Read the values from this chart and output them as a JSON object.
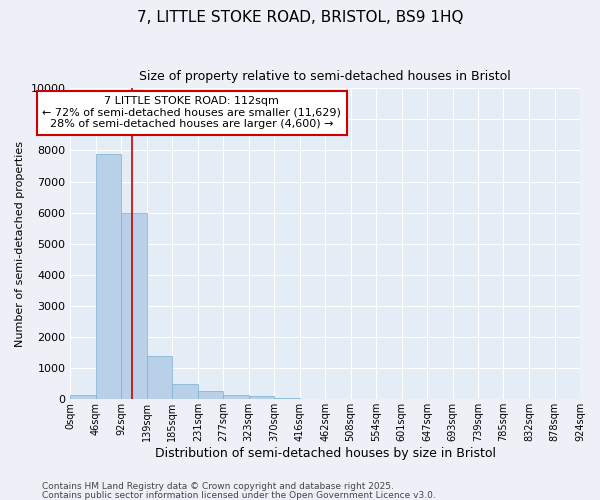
{
  "title": "7, LITTLE STOKE ROAD, BRISTOL, BS9 1HQ",
  "subtitle": "Size of property relative to semi-detached houses in Bristol",
  "xlabel": "Distribution of semi-detached houses by size in Bristol",
  "ylabel": "Number of semi-detached properties",
  "bar_values": [
    150,
    7900,
    6000,
    1400,
    500,
    250,
    150,
    100,
    50,
    10,
    5,
    2,
    1,
    0,
    0,
    0,
    0,
    0,
    0,
    0
  ],
  "bin_edges": [
    0,
    46,
    92,
    139,
    185,
    231,
    277,
    323,
    370,
    416,
    462,
    508,
    554,
    601,
    647,
    693,
    739,
    785,
    832,
    878,
    924
  ],
  "tick_labels": [
    "0sqm",
    "46sqm",
    "92sqm",
    "139sqm",
    "185sqm",
    "231sqm",
    "277sqm",
    "323sqm",
    "370sqm",
    "416sqm",
    "462sqm",
    "508sqm",
    "554sqm",
    "601sqm",
    "647sqm",
    "693sqm",
    "739sqm",
    "785sqm",
    "832sqm",
    "878sqm",
    "924sqm"
  ],
  "bar_color": "#b8d0e8",
  "bar_edge_color": "#7aafd4",
  "property_line_x": 112,
  "property_line_color": "#cc0000",
  "annotation_line1": "7 LITTLE STOKE ROAD: 112sqm",
  "annotation_line2": "← 72% of semi-detached houses are smaller (11,629)",
  "annotation_line3": "28% of semi-detached houses are larger (4,600) →",
  "annotation_box_color": "#cc0000",
  "ylim": [
    0,
    10000
  ],
  "yticks": [
    0,
    1000,
    2000,
    3000,
    4000,
    5000,
    6000,
    7000,
    8000,
    9000,
    10000
  ],
  "footnote1": "Contains HM Land Registry data © Crown copyright and database right 2025.",
  "footnote2": "Contains public sector information licensed under the Open Government Licence v3.0.",
  "bg_color": "#edf1f7",
  "plot_bg_color": "#e4ecf5",
  "grid_color": "#ffffff",
  "title_fontsize": 11,
  "subtitle_fontsize": 9,
  "xlabel_fontsize": 9,
  "ylabel_fontsize": 8,
  "annotation_fontsize": 8,
  "footnote_fontsize": 6.5
}
